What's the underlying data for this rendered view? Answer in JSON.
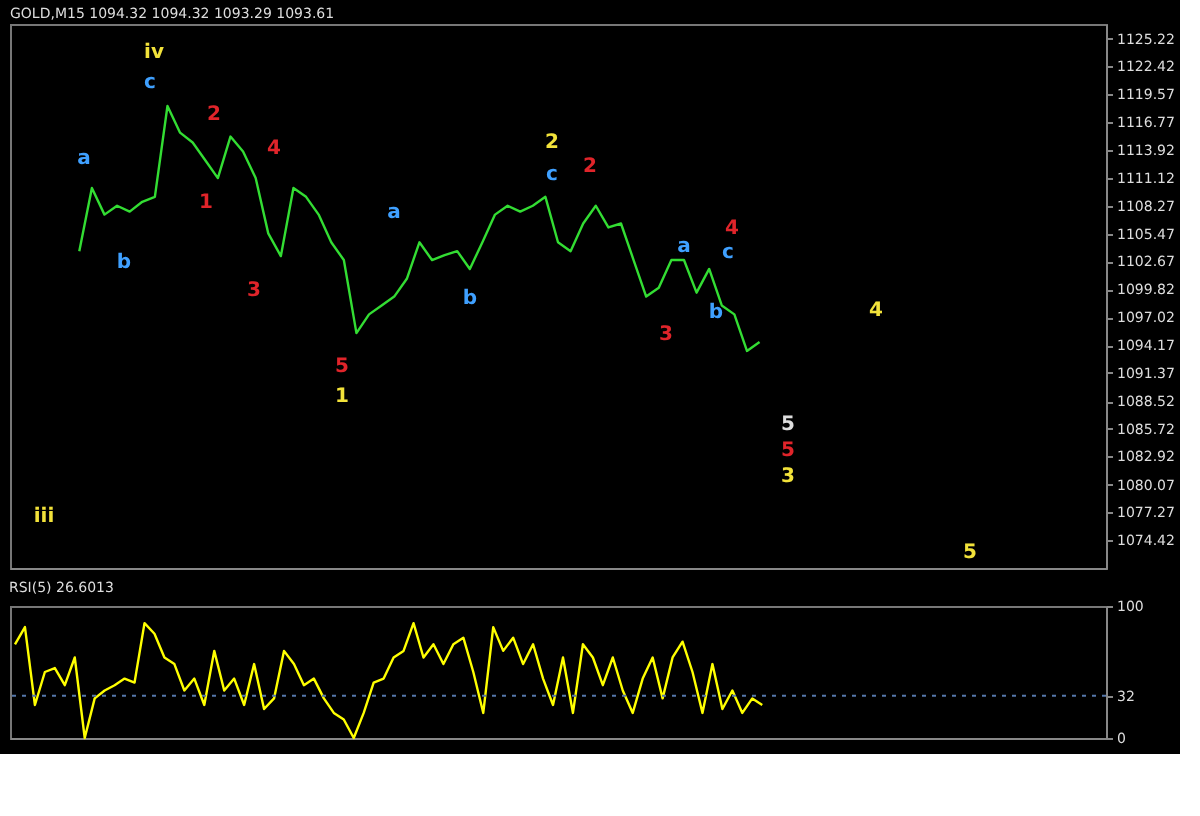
{
  "chart_data": [
    {
      "type": "line",
      "title": "GOLD,M15  1094.32 1094.32 1093.29 1093.61",
      "ylim": [
        1071.62,
        1126.7
      ],
      "yticks": [
        1074.42,
        1077.27,
        1080.07,
        1082.92,
        1085.72,
        1088.52,
        1091.37,
        1094.17,
        1097.02,
        1099.82,
        1102.67,
        1105.47,
        1108.27,
        1111.12,
        1113.92,
        1116.77,
        1119.57,
        1122.42,
        1125.22
      ],
      "tick_labels": "y",
      "categories": [
        null,
        null,
        null,
        null,
        null,
        null,
        null,
        null,
        null,
        null,
        null,
        null,
        null,
        null,
        null,
        null,
        null,
        null,
        null,
        null,
        null,
        null,
        null,
        null,
        null,
        null,
        null,
        null,
        null,
        null,
        null,
        null,
        null,
        null,
        null,
        null,
        null,
        null,
        null,
        null,
        null,
        null,
        null,
        null,
        null,
        null,
        null,
        null,
        null,
        null,
        null,
        null,
        null,
        null,
        null,
        null,
        null,
        null,
        null,
        null,
        null,
        null,
        null,
        null,
        null,
        null,
        null,
        null,
        null,
        null,
        null,
        null,
        null,
        null,
        null,
        null,
        null,
        null,
        null,
        null,
        null,
        null,
        null,
        null,
        null,
        null,
        null
      ],
      "series": [
        {
          "color": "#33dd33",
          "values": [
            null,
            null,
            null,
            null,
            null,
            1103.7,
            1110.1,
            1107.4,
            1108.3,
            1107.7,
            1108.7,
            1109.2,
            1118.4,
            1115.7,
            1114.7,
            1112.9,
            1111.1,
            1115.3,
            1113.8,
            1111.1,
            1105.5,
            1103.2,
            1110.1,
            1109.2,
            1107.4,
            1104.6,
            1102.8,
            1095.4,
            1097.3,
            1098.2,
            1099.1,
            1100.9,
            1104.6,
            1102.8,
            1103.3,
            1103.7,
            1101.9,
            1104.6,
            1107.4,
            1108.3,
            1107.7,
            1108.3,
            1109.2,
            1104.6,
            1103.7,
            1106.5,
            1108.3,
            1106.1,
            1106.5,
            1102.8,
            1099.1,
            1100.0,
            1102.8,
            1102.8,
            1099.5,
            1101.9,
            1098.2,
            1097.3,
            1093.6,
            1094.5,
            null,
            null,
            null,
            null,
            null,
            null,
            null,
            null,
            null,
            null,
            null,
            null,
            null,
            null,
            null,
            null,
            null,
            null,
            null,
            null,
            null,
            null,
            null,
            null,
            null,
            null,
            null
          ]
        }
      ],
      "annotations": [
        "iii",
        "a",
        "b",
        "c",
        "iv",
        "1",
        "2",
        "3",
        "4",
        "5",
        "1",
        "a",
        "b",
        "2",
        "c",
        "2",
        "3",
        "a",
        "b",
        "c",
        "4",
        "5",
        "5",
        "3",
        "4",
        "5"
      ]
    },
    {
      "type": "line",
      "title": "RSI(5) 26.6013",
      "ylim": [
        0,
        100
      ],
      "yticks": [
        0,
        32,
        100
      ],
      "tick_labels": "y",
      "categories": [
        null,
        null,
        null,
        null,
        null,
        null,
        null,
        null,
        null,
        null,
        null,
        null,
        null,
        null,
        null,
        null,
        null,
        null,
        null,
        null,
        null,
        null,
        null,
        null,
        null,
        null,
        null,
        null,
        null,
        null,
        null,
        null,
        null,
        null,
        null,
        null,
        null,
        null,
        null,
        null,
        null,
        null,
        null,
        null,
        null,
        null,
        null,
        null,
        null,
        null,
        null,
        null,
        null,
        null,
        null,
        null,
        null,
        null,
        null,
        null,
        null,
        null,
        null,
        null,
        null,
        null,
        null,
        null,
        null,
        null,
        null,
        null,
        null,
        null,
        null,
        null,
        null,
        null,
        null,
        null,
        null,
        null,
        null,
        null,
        null,
        null,
        null,
        null,
        null,
        null,
        null,
        null,
        null,
        null,
        null,
        null,
        null,
        null,
        null,
        null,
        null,
        null,
        null,
        null,
        null,
        null,
        null,
        null,
        null,
        null
      ],
      "series": [
        {
          "color": "#ffff00",
          "values": [
            71,
            84,
            25,
            50,
            53,
            40,
            61,
            0,
            30,
            36,
            40,
            45,
            42,
            87,
            79,
            61,
            56,
            36,
            45,
            25,
            66,
            36,
            45,
            25,
            56,
            22,
            30,
            66,
            56,
            40,
            45,
            30,
            19,
            14,
            0,
            19,
            42,
            45,
            61,
            66,
            87,
            61,
            71,
            56,
            71,
            76,
            50,
            19,
            84,
            66,
            76,
            56,
            71,
            45,
            25,
            61,
            19,
            71,
            61,
            40,
            61,
            36,
            19,
            45,
            61,
            30,
            61,
            73,
            50,
            19,
            56,
            22,
            36,
            19,
            30,
            25,
            null,
            null,
            null,
            null,
            null,
            null,
            null,
            null,
            null,
            null,
            null,
            null,
            null,
            null,
            null,
            null,
            null,
            null,
            null,
            null,
            null,
            null,
            null,
            null,
            null,
            null,
            null,
            null,
            null,
            null,
            null,
            null,
            null,
            null
          ]
        }
      ],
      "ref_lines": [
        {
          "axis": "y",
          "value": 32,
          "color": "#5577aa",
          "line_style": "dotted"
        }
      ]
    }
  ]
}
